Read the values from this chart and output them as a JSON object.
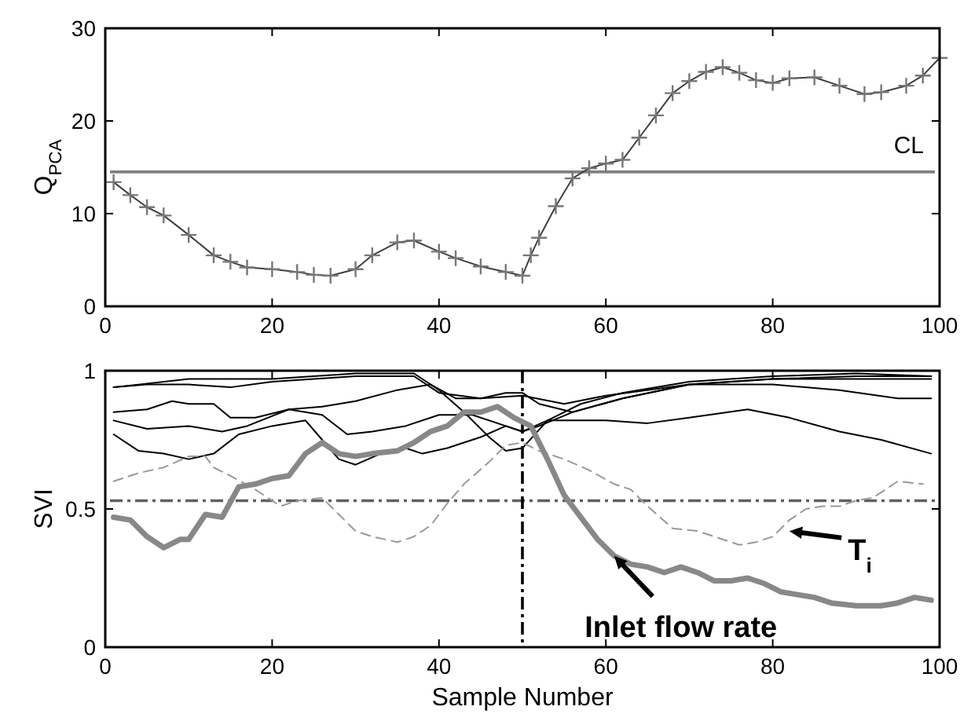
{
  "chart_data": [
    {
      "type": "line",
      "ylabel": "Q$_{PCA}$",
      "xlim": [
        0,
        100
      ],
      "ylim": [
        0,
        30
      ],
      "xticks": [
        0,
        20,
        40,
        60,
        80,
        100
      ],
      "yticks": [
        0,
        10,
        20,
        30
      ],
      "grid": false,
      "marker": "cross",
      "line_style": "solid",
      "ref_lines": [
        {
          "axis": "y",
          "value": 14.5,
          "label": "CL",
          "color": "#808080",
          "line_style": "solid"
        }
      ],
      "series": [
        {
          "color": "#404040",
          "x": [
            1,
            3,
            5,
            7,
            10,
            13,
            15,
            17,
            20,
            23,
            25,
            27,
            30,
            32,
            35,
            37,
            40,
            42,
            45,
            48,
            50,
            51,
            52,
            54,
            56,
            58,
            60,
            62,
            64,
            66,
            68,
            70,
            72,
            74,
            76,
            78,
            80,
            82,
            85,
            88,
            91,
            93,
            96,
            98,
            100
          ],
          "values": [
            13.4,
            12,
            10.7,
            9.8,
            7.7,
            5.5,
            4.8,
            4.2,
            4,
            3.7,
            3.4,
            3.3,
            4,
            5.5,
            6.9,
            7.1,
            5.9,
            5.2,
            4.3,
            3.7,
            3.3,
            5.5,
            7.4,
            10.8,
            13.8,
            14.9,
            15.4,
            15.8,
            18.2,
            20.6,
            23,
            24.3,
            25.3,
            25.8,
            25.2,
            24.4,
            24.1,
            24.6,
            24.7,
            23.8,
            22.9,
            23.1,
            23.8,
            24.9,
            26.8
          ]
        }
      ]
    },
    {
      "type": "line",
      "xlabel": "Sample Number",
      "ylabel": "SVI",
      "xlim": [
        0,
        100
      ],
      "ylim": [
        0,
        1
      ],
      "xticks": [
        0,
        20,
        40,
        60,
        80,
        100
      ],
      "yticks": [
        0,
        0.5,
        1
      ],
      "grid": false,
      "marker": "none",
      "ref_lines": [
        {
          "axis": "y",
          "value": 0.53,
          "color": "#606060",
          "line_style": "dashdot"
        },
        {
          "axis": "x",
          "value": 50,
          "color": "#000000",
          "line_style": "dashdot"
        }
      ],
      "annotations": [
        {
          "text": "Inlet flow rate",
          "x": 61,
          "y": 0.33
        },
        {
          "text": "T$_{i}$",
          "x": 82,
          "y": 0.42
        }
      ],
      "series": [
        {
          "color": "#000000",
          "line_style": "solid",
          "x": [
            1,
            10,
            20,
            30,
            37,
            40,
            43,
            46,
            48,
            50,
            53,
            57,
            62,
            70,
            80,
            90,
            99
          ],
          "values": [
            0.94,
            0.97,
            0.97,
            0.99,
            0.99,
            0.93,
            0.85,
            0.76,
            0.71,
            0.72,
            0.82,
            0.88,
            0.92,
            0.96,
            0.98,
            0.99,
            0.98
          ]
        },
        {
          "color": "#000000",
          "line_style": "solid",
          "x": [
            1,
            5,
            10,
            15,
            20,
            30,
            37,
            40,
            45,
            50,
            55,
            60,
            70,
            80,
            90,
            99
          ],
          "values": [
            0.94,
            0.95,
            0.95,
            0.94,
            0.96,
            0.98,
            0.98,
            0.92,
            0.9,
            0.91,
            0.88,
            0.91,
            0.95,
            0.97,
            0.97,
            0.97
          ]
        },
        {
          "color": "#000000",
          "line_style": "solid",
          "x": [
            1,
            5,
            8,
            10,
            13,
            15,
            18,
            22,
            26,
            29,
            32,
            36,
            40,
            44,
            48,
            50,
            53,
            60,
            65,
            70,
            77,
            82,
            88,
            93,
            99
          ],
          "values": [
            0.85,
            0.86,
            0.89,
            0.88,
            0.88,
            0.83,
            0.83,
            0.86,
            0.84,
            0.77,
            0.78,
            0.8,
            0.84,
            0.84,
            0.8,
            0.78,
            0.82,
            0.82,
            0.81,
            0.83,
            0.86,
            0.83,
            0.78,
            0.75,
            0.7
          ]
        },
        {
          "color": "#000000",
          "line_style": "solid",
          "x": [
            1,
            5,
            10,
            14,
            17,
            22,
            26,
            30,
            35,
            39,
            42,
            45,
            48,
            50,
            52,
            56,
            62,
            70,
            80,
            88,
            95,
            99
          ],
          "values": [
            0.82,
            0.79,
            0.8,
            0.78,
            0.8,
            0.86,
            0.87,
            0.89,
            0.93,
            0.95,
            0.9,
            0.9,
            0.92,
            0.92,
            0.88,
            0.85,
            0.9,
            0.95,
            0.95,
            0.93,
            0.9,
            0.9
          ]
        },
        {
          "color": "#000000",
          "line_style": "solid",
          "x": [
            1,
            4,
            7,
            10,
            13,
            16,
            20,
            24,
            26,
            28,
            30,
            33,
            36,
            38,
            41,
            45,
            48,
            50,
            52,
            56,
            62,
            70,
            80,
            90,
            99
          ],
          "values": [
            0.77,
            0.71,
            0.7,
            0.68,
            0.7,
            0.77,
            0.8,
            0.82,
            0.75,
            0.68,
            0.66,
            0.7,
            0.72,
            0.7,
            0.72,
            0.76,
            0.8,
            0.78,
            0.8,
            0.85,
            0.9,
            0.95,
            0.97,
            0.98,
            0.98
          ]
        },
        {
          "color": "#999999",
          "line_style": "dashed",
          "x": [
            1,
            4,
            7,
            10,
            12,
            13,
            15,
            18,
            21,
            23,
            26,
            28,
            30,
            32,
            35,
            37,
            39,
            41,
            43,
            46,
            48,
            50,
            52,
            55,
            58,
            61,
            63,
            65,
            68,
            71,
            74,
            76,
            78,
            80,
            82,
            84,
            86,
            88,
            90,
            92,
            95,
            98
          ],
          "values": [
            0.6,
            0.63,
            0.65,
            0.69,
            0.69,
            0.65,
            0.62,
            0.57,
            0.51,
            0.53,
            0.54,
            0.48,
            0.42,
            0.4,
            0.38,
            0.4,
            0.44,
            0.52,
            0.59,
            0.67,
            0.73,
            0.74,
            0.71,
            0.68,
            0.64,
            0.59,
            0.57,
            0.51,
            0.43,
            0.42,
            0.39,
            0.37,
            0.38,
            0.4,
            0.46,
            0.5,
            0.51,
            0.51,
            0.53,
            0.54,
            0.6,
            0.59
          ]
        },
        {
          "color": "#888888",
          "line_style": "solid",
          "x": [
            1,
            3,
            5,
            7,
            9,
            10,
            12,
            14,
            16,
            18,
            20,
            22,
            24,
            26,
            28,
            30,
            32,
            35,
            37,
            39,
            41,
            43,
            45,
            47,
            49,
            51,
            53,
            55,
            57,
            59,
            61,
            63,
            65,
            67,
            69,
            71,
            73,
            75,
            77,
            79,
            81,
            83,
            85,
            87,
            90,
            93,
            95,
            97,
            99
          ],
          "values": [
            0.47,
            0.46,
            0.4,
            0.36,
            0.39,
            0.39,
            0.48,
            0.47,
            0.58,
            0.59,
            0.61,
            0.62,
            0.7,
            0.74,
            0.7,
            0.69,
            0.7,
            0.71,
            0.74,
            0.78,
            0.8,
            0.85,
            0.85,
            0.87,
            0.83,
            0.8,
            0.68,
            0.55,
            0.47,
            0.39,
            0.33,
            0.3,
            0.29,
            0.27,
            0.29,
            0.27,
            0.24,
            0.24,
            0.25,
            0.23,
            0.2,
            0.19,
            0.18,
            0.16,
            0.15,
            0.15,
            0.16,
            0.18,
            0.17
          ]
        }
      ]
    }
  ]
}
